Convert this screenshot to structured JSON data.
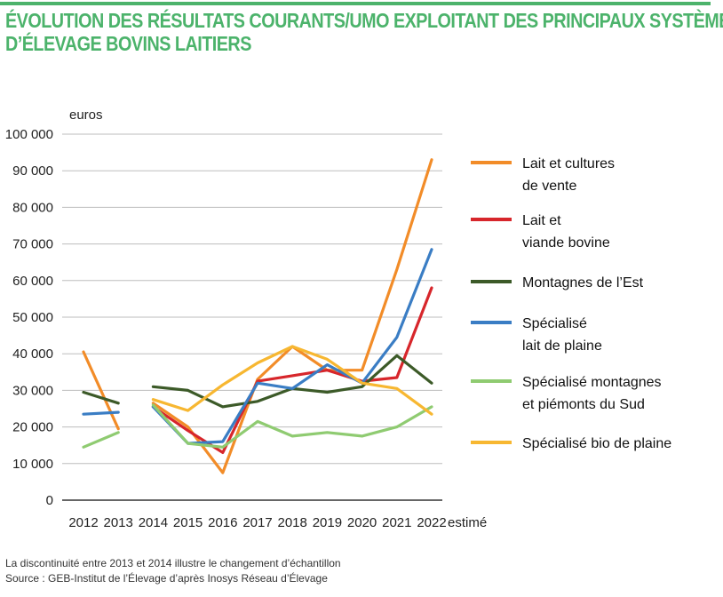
{
  "title_lines": [
    "ÉVOLUTION DES RÉSULTATS COURANTS/UMO EXPLOITANT DES PRINCIPAUX SYSTÈMES",
    "D’ÉLEVAGE BOVINS LAITIERS"
  ],
  "footnote": "La discontinuité entre 2013 et 2014 illustre le changement d’échantillon",
  "source": "Source : GEB-Institut de l’Élevage d’après Inosys Réseau d’Élevage",
  "colors": {
    "accent": "#4cb36b"
  },
  "chart_data": {
    "type": "line",
    "title": "ÉVOLUTION DES RÉSULTATS COURANTS/UMO EXPLOITANT DES PRINCIPAUX SYSTÈMES D’ÉLEVAGE BOVINS LAITIERS",
    "unit_label": "euros",
    "xlabel": "",
    "ylabel": "",
    "categories": [
      "2012",
      "2013",
      "2014",
      "2015",
      "2016",
      "2017",
      "2018",
      "2019",
      "2020",
      "2021",
      "2022"
    ],
    "estimate_label": "estimé",
    "ylim": [
      0,
      100000
    ],
    "yticks": [
      0,
      10000,
      20000,
      30000,
      40000,
      50000,
      60000,
      70000,
      80000,
      90000,
      100000
    ],
    "ytick_labels": [
      "0",
      "10 000",
      "20 000",
      "30 000",
      "40 000",
      "50 000",
      "60 000",
      "70 000",
      "80 000",
      "90 000",
      "100 000"
    ],
    "grid": "horizontal",
    "legend_position": "right",
    "break_between": [
      "2013",
      "2014"
    ],
    "series": [
      {
        "name_lines": [
          "Lait et cultures",
          "de vente"
        ],
        "color": "#f28c28",
        "values": [
          40500,
          19500,
          26500,
          20000,
          7500,
          33000,
          42000,
          35500,
          35500,
          63000,
          93000
        ]
      },
      {
        "name_lines": [
          "Lait et",
          "viande bovine"
        ],
        "color": "#d7262b",
        "values": [
          null,
          null,
          25500,
          19000,
          13000,
          32500,
          34000,
          35500,
          32500,
          33500,
          58000
        ]
      },
      {
        "name_lines": [
          "Montagnes de l’Est"
        ],
        "color": "#3c5a28",
        "values": [
          29500,
          26500,
          31000,
          30000,
          25500,
          27000,
          30500,
          29500,
          31000,
          39500,
          32000
        ]
      },
      {
        "name_lines": [
          "Spécialisé",
          "lait de plaine"
        ],
        "color": "#3a7dc4",
        "values": [
          23500,
          24000,
          25500,
          15500,
          16000,
          32000,
          30500,
          37000,
          32000,
          44500,
          68500
        ]
      },
      {
        "name_lines": [
          "Spécialisé montagnes",
          "et piémonts du Sud"
        ],
        "color": "#8fcb71",
        "values": [
          14500,
          18500,
          26000,
          15500,
          14500,
          21500,
          17500,
          18500,
          17500,
          20000,
          25500
        ]
      },
      {
        "name_lines": [
          "Spécialisé bio de plaine"
        ],
        "color": "#f7b731",
        "values": [
          null,
          null,
          27500,
          24500,
          31500,
          37500,
          42000,
          38500,
          32000,
          30500,
          23500
        ]
      }
    ]
  }
}
